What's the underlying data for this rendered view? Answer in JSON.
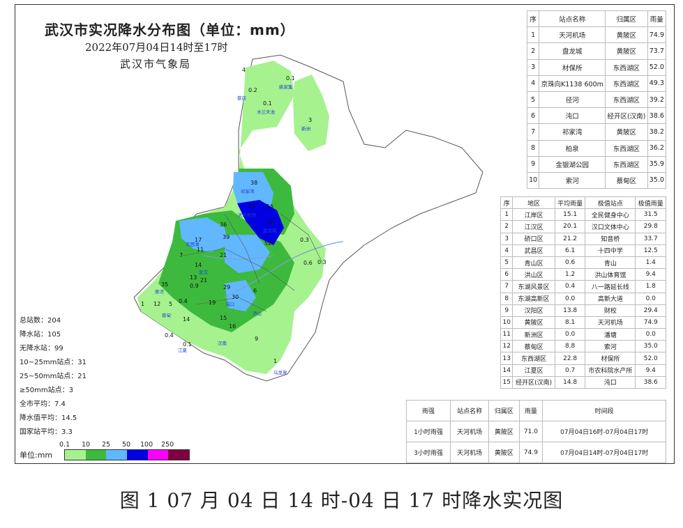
{
  "title": "武汉市实况降水分布图（单位：mm）",
  "subtitle": "2022年07月04日14时至17时",
  "issuer": "武汉市气象局",
  "stats": [
    {
      "label": "总站数：204"
    },
    {
      "label": "降水站：105"
    },
    {
      "label": "无降水站：99"
    },
    {
      "label": "10~25mm站点：31"
    },
    {
      "label": "25~50mm站点：21"
    },
    {
      "label": "≥50mm站点：3"
    },
    {
      "label": "全市平均：7.4"
    },
    {
      "label": "降水值平均：14.5"
    },
    {
      "label": "国家站平均：3.3"
    }
  ],
  "legend": {
    "unit_label": "单位:mm",
    "ticks": [
      "0.1",
      "10",
      "25",
      "50",
      "100",
      "250"
    ],
    "colors": [
      "#a6f28f",
      "#3dba3d",
      "#61b8ff",
      "#0000e1",
      "#fa00fa",
      "#7f0040"
    ]
  },
  "top_stations": {
    "headers": [
      "序",
      "站点名称",
      "归属区",
      "雨量"
    ],
    "rows": [
      [
        "1",
        "天河机场",
        "黄陂区",
        "74.9"
      ],
      [
        "2",
        "盘龙城",
        "黄陂区",
        "73.7"
      ],
      [
        "3",
        "材保所",
        "东西湖区",
        "52.0"
      ],
      [
        "4",
        "京珠向K1138 600m",
        "东西湖区",
        "49.3"
      ],
      [
        "5",
        "径河",
        "东西湖区",
        "39.2"
      ],
      [
        "6",
        "沌口",
        "经开区(汉南)",
        "38.6"
      ],
      [
        "7",
        "祁家湾",
        "黄陂区",
        "38.2"
      ],
      [
        "8",
        "柏泉",
        "东西湖区",
        "36.2"
      ],
      [
        "9",
        "金银湖公园",
        "东西湖区",
        "35.9"
      ],
      [
        "10",
        "索河",
        "蔡甸区",
        "35.0"
      ]
    ]
  },
  "district_stats": {
    "headers": [
      "序",
      "地区",
      "平均雨量",
      "极值站点",
      "极值雨量"
    ],
    "rows": [
      [
        "1",
        "江岸区",
        "15.1",
        "全民健身中心",
        "31.5"
      ],
      [
        "2",
        "江汉区",
        "20.1",
        "汉口文体中心",
        "29.8"
      ],
      [
        "3",
        "硚口区",
        "21.2",
        "知音桥",
        "33.7"
      ],
      [
        "4",
        "武昌区",
        "6.1",
        "十四中学",
        "12.5"
      ],
      [
        "5",
        "青山区",
        "0.6",
        "青山",
        "1.4"
      ],
      [
        "6",
        "洪山区",
        "1.2",
        "洪山体育馆",
        "9.4"
      ],
      [
        "7",
        "东湖风景区",
        "0.4",
        "八一路延长线",
        "1.8"
      ],
      [
        "8",
        "东湖高新区",
        "0.0",
        "高新大道",
        "0.0"
      ],
      [
        "9",
        "汉阳区",
        "13.8",
        "财校",
        "29.4"
      ],
      [
        "10",
        "黄陂区",
        "8.1",
        "天河机场",
        "74.9"
      ],
      [
        "11",
        "新洲区",
        "0.0",
        "潘塘",
        "0.0"
      ],
      [
        "12",
        "蔡甸区",
        "8.8",
        "索河",
        "35.0"
      ],
      [
        "13",
        "东西湖区",
        "22.8",
        "材保所",
        "52.0"
      ],
      [
        "14",
        "江夏区",
        "0.7",
        "市农科院水产所",
        "9.4"
      ],
      [
        "15",
        "经开区(汉南)",
        "14.8",
        "沌口",
        "38.6"
      ]
    ]
  },
  "intensity": {
    "headers": [
      "雨强",
      "站点名称",
      "归属区",
      "雨量",
      "时间段"
    ],
    "rows": [
      [
        "1小时雨强",
        "天河机场",
        "黄陂区",
        "71.0",
        "07月04日16时-07月04日17时"
      ],
      [
        "3小时雨强",
        "天河机场",
        "黄陂区",
        "74.9",
        "07月04日14时-07月04日17时"
      ]
    ]
  },
  "map_labels": {
    "values": [
      "4",
      "0.1",
      "0.2",
      "0.1",
      "3",
      "38",
      "75",
      "15",
      "74",
      "52",
      "36",
      "39",
      "17",
      "21",
      "14",
      "35",
      "12",
      "1",
      "5",
      "0.4",
      "0.1",
      "14",
      "15",
      "16",
      "9",
      "1",
      "0.3",
      "0.3",
      "29",
      "30",
      "6",
      "0.6",
      "7",
      "11",
      "13",
      "0.9",
      "0.4",
      "19",
      "21"
    ],
    "stations": [
      "祁家湾",
      "天河机场",
      "盘龙城",
      "武汉",
      "索河",
      "沌口",
      "蔡甸",
      "木兰天池",
      "姚家集",
      "蔡店",
      "新洲",
      "汉南",
      "乌龙泉",
      "江夏",
      "东西湖",
      "洪山"
    ]
  },
  "caption": "图 1 07 月 04 日 14 时-04 日 17 时降水实况图"
}
